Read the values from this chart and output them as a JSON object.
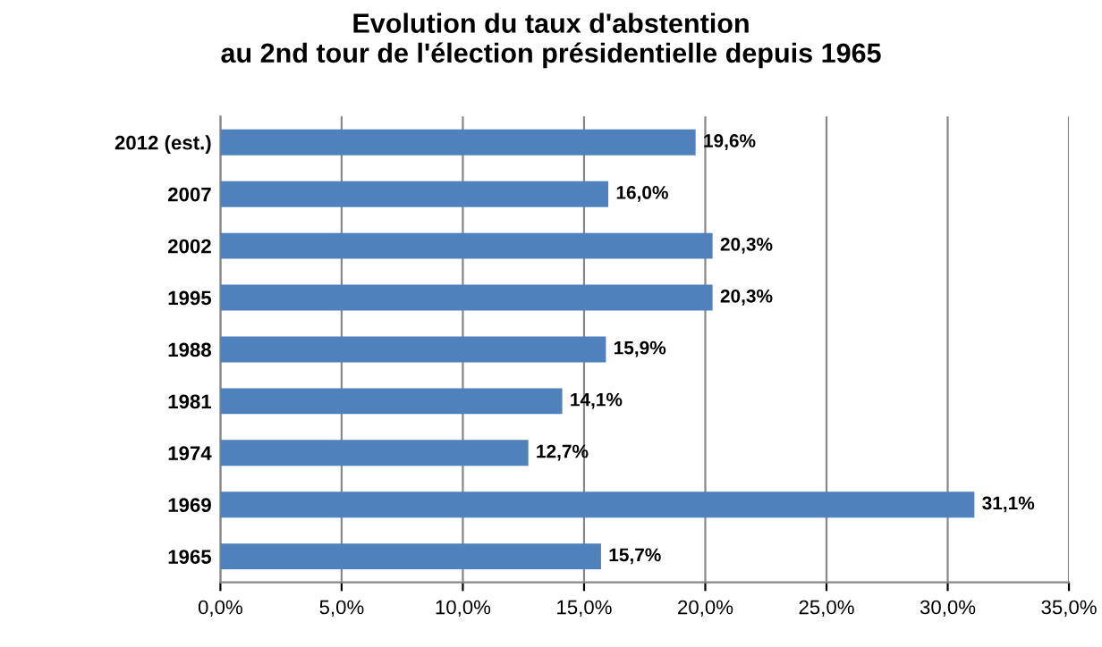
{
  "chart_data": {
    "type": "bar",
    "orientation": "horizontal",
    "title": "Evolution du taux d'abstention\nau 2nd tour de l'élection présidentielle depuis 1965",
    "categories": [
      "2012 (est.)",
      "2007",
      "2002",
      "1995",
      "1988",
      "1981",
      "1974",
      "1969",
      "1965"
    ],
    "values": [
      19.6,
      16.0,
      20.3,
      20.3,
      15.9,
      14.1,
      12.7,
      31.1,
      15.7
    ],
    "value_labels": [
      "19,6%",
      "16,0%",
      "20,3%",
      "20,3%",
      "15,9%",
      "14,1%",
      "12,7%",
      "31,1%",
      "15,7%"
    ],
    "color": "#4f81bd",
    "xlim": [
      0,
      35
    ],
    "xticks": [
      {
        "value": 0,
        "label": "0,0%"
      },
      {
        "value": 5,
        "label": "5,0%"
      },
      {
        "value": 10,
        "label": "10,0%"
      },
      {
        "value": 15,
        "label": "15,0%"
      },
      {
        "value": 20,
        "label": "20,0%"
      },
      {
        "value": 25,
        "label": "25,0%"
      },
      {
        "value": 30,
        "label": "30,0%"
      },
      {
        "value": 35,
        "label": "35,0%"
      }
    ],
    "grid": "x"
  }
}
